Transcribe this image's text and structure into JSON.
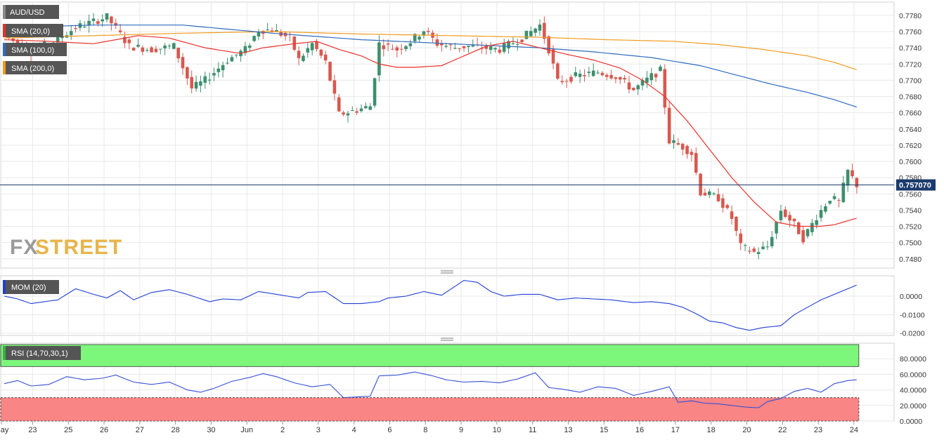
{
  "colors": {
    "bull": "#3d8f6e",
    "bear": "#d9584e",
    "sma20": "#e8302a",
    "sma100": "#2e6bbf",
    "sma200": "#f39a1e",
    "mom": "#1f3fd6",
    "rsi": "#3550d4",
    "price_line": "#1a3a6b",
    "rsi_overbought": "#7cf77c",
    "rsi_oversold": "#f98585",
    "grid": "#e9e9e9",
    "tag_bg": "#555555"
  },
  "watermark": {
    "part1": "FX",
    "part2": "STREET"
  },
  "chart_data": [
    {
      "id": "price",
      "type": "candlestick",
      "title": "AUD/USD",
      "ylim": [
        0.7472,
        0.7792
      ],
      "yticks": [
        "0.7480",
        "0.7500",
        "0.7520",
        "0.7540",
        "0.7560",
        "0.7580",
        "0.7600",
        "0.7620",
        "0.7640",
        "0.7660",
        "0.7680",
        "0.7700",
        "0.7720",
        "0.7740",
        "0.7760",
        "0.7780"
      ],
      "current_price_label": "0.757070",
      "current_price": 0.7571,
      "overlays": [
        {
          "name": "SMA (20,0)",
          "key": "sma20"
        },
        {
          "name": "SMA (100,0)",
          "key": "sma100"
        },
        {
          "name": "SMA (200,0)",
          "key": "sma200"
        }
      ],
      "x_labels": [
        {
          "i": 0,
          "label": "May"
        },
        {
          "i": 7,
          "label": "23"
        },
        {
          "i": 15,
          "label": "25"
        },
        {
          "i": 23,
          "label": "26"
        },
        {
          "i": 31,
          "label": "27"
        },
        {
          "i": 39,
          "label": "28"
        },
        {
          "i": 47,
          "label": "30"
        },
        {
          "i": 55,
          "label": "Jun"
        },
        {
          "i": 63,
          "label": "2"
        },
        {
          "i": 71,
          "label": "3"
        },
        {
          "i": 79,
          "label": "4"
        },
        {
          "i": 87,
          "label": "6"
        },
        {
          "i": 95,
          "label": "8"
        },
        {
          "i": 103,
          "label": "9"
        },
        {
          "i": 111,
          "label": "10"
        },
        {
          "i": 119,
          "label": "11"
        },
        {
          "i": 127,
          "label": "13"
        },
        {
          "i": 135,
          "label": "15"
        },
        {
          "i": 143,
          "label": "16"
        },
        {
          "i": 151,
          "label": "17"
        },
        {
          "i": 159,
          "label": "18"
        },
        {
          "i": 167,
          "label": "20"
        },
        {
          "i": 175,
          "label": "22"
        },
        {
          "i": 183,
          "label": "23"
        },
        {
          "i": 191,
          "label": "24"
        }
      ],
      "anchors": {
        "close": [
          [
            0,
            0.7755
          ],
          [
            6,
            0.7735
          ],
          [
            11,
            0.7748
          ],
          [
            16,
            0.7765
          ],
          [
            23,
            0.7778
          ],
          [
            28,
            0.7742
          ],
          [
            33,
            0.7738
          ],
          [
            38,
            0.7742
          ],
          [
            42,
            0.769
          ],
          [
            45,
            0.77
          ],
          [
            50,
            0.7725
          ],
          [
            54,
            0.7738
          ],
          [
            57,
            0.7762
          ],
          [
            60,
            0.7762
          ],
          [
            64,
            0.7752
          ],
          [
            66,
            0.7725
          ],
          [
            69,
            0.7745
          ],
          [
            72,
            0.7722
          ],
          [
            75,
            0.7658
          ],
          [
            78,
            0.7662
          ],
          [
            82,
            0.7668
          ],
          [
            84,
            0.7745
          ],
          [
            88,
            0.7738
          ],
          [
            91,
            0.7748
          ],
          [
            94,
            0.7762
          ],
          [
            97,
            0.7745
          ],
          [
            101,
            0.774
          ],
          [
            104,
            0.7742
          ],
          [
            107,
            0.774
          ],
          [
            111,
            0.7738
          ],
          [
            116,
            0.7752
          ],
          [
            120,
            0.7768
          ],
          [
            122,
            0.7738
          ],
          [
            124,
            0.7698
          ],
          [
            128,
            0.7705
          ],
          [
            133,
            0.771
          ],
          [
            137,
            0.7705
          ],
          [
            141,
            0.7688
          ],
          [
            145,
            0.7705
          ],
          [
            147,
            0.7712
          ],
          [
            149,
            0.7625
          ],
          [
            152,
            0.7618
          ],
          [
            154,
            0.761
          ],
          [
            156,
            0.7562
          ],
          [
            160,
            0.7555
          ],
          [
            163,
            0.753
          ],
          [
            165,
            0.7495
          ],
          [
            168,
            0.7488
          ],
          [
            171,
            0.7495
          ],
          [
            174,
            0.754
          ],
          [
            177,
            0.7522
          ],
          [
            179,
            0.7505
          ],
          [
            182,
            0.7532
          ],
          [
            185,
            0.7555
          ],
          [
            187,
            0.755
          ],
          [
            189,
            0.7588
          ],
          [
            191,
            0.7571
          ]
        ],
        "sma20": [
          [
            0,
            0.775
          ],
          [
            10,
            0.7748
          ],
          [
            20,
            0.7745
          ],
          [
            30,
            0.7755
          ],
          [
            37,
            0.7752
          ],
          [
            45,
            0.774
          ],
          [
            53,
            0.7733
          ],
          [
            58,
            0.774
          ],
          [
            65,
            0.7745
          ],
          [
            70,
            0.7748
          ],
          [
            75,
            0.7738
          ],
          [
            80,
            0.773
          ],
          [
            84,
            0.772
          ],
          [
            88,
            0.7716
          ],
          [
            92,
            0.7716
          ],
          [
            98,
            0.7718
          ],
          [
            103,
            0.773
          ],
          [
            108,
            0.7742
          ],
          [
            114,
            0.7748
          ],
          [
            120,
            0.774
          ],
          [
            126,
            0.7732
          ],
          [
            132,
            0.7725
          ],
          [
            138,
            0.7715
          ],
          [
            143,
            0.77
          ],
          [
            148,
            0.768
          ],
          [
            153,
            0.765
          ],
          [
            158,
            0.7615
          ],
          [
            163,
            0.758
          ],
          [
            168,
            0.755
          ],
          [
            173,
            0.7525
          ],
          [
            178,
            0.752
          ],
          [
            183,
            0.752
          ],
          [
            186,
            0.7522
          ],
          [
            191,
            0.753
          ]
        ],
        "sma100": [
          [
            0,
            0.7765
          ],
          [
            20,
            0.7768
          ],
          [
            40,
            0.7768
          ],
          [
            60,
            0.7758
          ],
          [
            80,
            0.775
          ],
          [
            100,
            0.7745
          ],
          [
            120,
            0.774
          ],
          [
            132,
            0.7735
          ],
          [
            145,
            0.7728
          ],
          [
            156,
            0.7718
          ],
          [
            165,
            0.7705
          ],
          [
            172,
            0.7695
          ],
          [
            180,
            0.7685
          ],
          [
            186,
            0.7676
          ],
          [
            191,
            0.7667
          ]
        ],
        "sma200": [
          [
            0,
            0.7752
          ],
          [
            20,
            0.7755
          ],
          [
            40,
            0.7758
          ],
          [
            60,
            0.776
          ],
          [
            80,
            0.7757
          ],
          [
            100,
            0.7755
          ],
          [
            120,
            0.7753
          ],
          [
            135,
            0.775
          ],
          [
            150,
            0.7748
          ],
          [
            160,
            0.7744
          ],
          [
            170,
            0.7738
          ],
          [
            180,
            0.773
          ],
          [
            186,
            0.7722
          ],
          [
            191,
            0.7713
          ]
        ]
      }
    },
    {
      "id": "mom",
      "type": "line",
      "title": "MOM (20)",
      "ylim": [
        -0.0205,
        0.0095
      ],
      "yticks": [
        "-0.0200",
        "-0.0100",
        "0.0000"
      ],
      "anchors": [
        [
          0,
          0.0
        ],
        [
          3,
          -0.0015
        ],
        [
          6,
          -0.004
        ],
        [
          9,
          -0.003
        ],
        [
          12,
          -0.002
        ],
        [
          16,
          0.004
        ],
        [
          20,
          0.001
        ],
        [
          23,
          -0.001
        ],
        [
          26,
          0.003
        ],
        [
          29,
          -0.002
        ],
        [
          33,
          0.002
        ],
        [
          37,
          0.0035
        ],
        [
          41,
          0.001
        ],
        [
          46,
          -0.003
        ],
        [
          49,
          -0.0015
        ],
        [
          53,
          -0.002
        ],
        [
          57,
          0.0025
        ],
        [
          61,
          0.001
        ],
        [
          66,
          -0.001
        ],
        [
          68,
          0.002
        ],
        [
          72,
          0.0025
        ],
        [
          76,
          -0.004
        ],
        [
          80,
          -0.004
        ],
        [
          84,
          -0.003
        ],
        [
          86,
          -0.001
        ],
        [
          90,
          0.0
        ],
        [
          94,
          0.0025
        ],
        [
          98,
          0.0005
        ],
        [
          103,
          0.0085
        ],
        [
          106,
          0.0075
        ],
        [
          109,
          0.0025
        ],
        [
          112,
          0.0
        ],
        [
          116,
          0.001
        ],
        [
          120,
          0.001
        ],
        [
          124,
          -0.002
        ],
        [
          128,
          -0.001
        ],
        [
          132,
          -0.0015
        ],
        [
          136,
          -0.002
        ],
        [
          141,
          -0.0035
        ],
        [
          145,
          -0.003
        ],
        [
          149,
          -0.004
        ],
        [
          152,
          -0.006
        ],
        [
          155,
          -0.0095
        ],
        [
          158,
          -0.0135
        ],
        [
          161,
          -0.0145
        ],
        [
          164,
          -0.017
        ],
        [
          167,
          -0.0185
        ],
        [
          170,
          -0.017
        ],
        [
          174,
          -0.016
        ],
        [
          177,
          -0.01
        ],
        [
          180,
          -0.006
        ],
        [
          183,
          -0.002
        ],
        [
          186,
          0.001
        ],
        [
          189,
          0.004
        ],
        [
          191,
          0.006
        ]
      ]
    },
    {
      "id": "rsi",
      "type": "line",
      "title": "RSI (14,70,30,1)",
      "ylim": [
        0,
        100
      ],
      "overbought": 70,
      "oversold": 30,
      "yticks": [
        "0.0000",
        "20.0000",
        "40.0000",
        "60.0000",
        "80.0000"
      ],
      "anchors": [
        [
          0,
          48
        ],
        [
          3,
          52
        ],
        [
          6,
          45
        ],
        [
          10,
          47
        ],
        [
          14,
          57
        ],
        [
          18,
          53
        ],
        [
          22,
          55
        ],
        [
          25,
          59
        ],
        [
          29,
          50
        ],
        [
          33,
          47
        ],
        [
          37,
          50
        ],
        [
          41,
          40
        ],
        [
          44,
          37
        ],
        [
          47,
          42
        ],
        [
          51,
          51
        ],
        [
          55,
          56
        ],
        [
          58,
          61
        ],
        [
          61,
          57
        ],
        [
          65,
          49
        ],
        [
          69,
          44
        ],
        [
          73,
          47
        ],
        [
          76,
          30
        ],
        [
          79,
          31
        ],
        [
          82,
          32
        ],
        [
          84,
          58
        ],
        [
          88,
          59
        ],
        [
          92,
          63
        ],
        [
          96,
          58
        ],
        [
          99,
          53
        ],
        [
          103,
          50
        ],
        [
          107,
          51
        ],
        [
          111,
          49
        ],
        [
          115,
          54
        ],
        [
          119,
          62
        ],
        [
          122,
          43
        ],
        [
          125,
          41
        ],
        [
          129,
          37
        ],
        [
          133,
          44
        ],
        [
          137,
          42
        ],
        [
          141,
          33
        ],
        [
          145,
          38
        ],
        [
          149,
          44
        ],
        [
          151,
          24
        ],
        [
          154,
          26
        ],
        [
          157,
          23
        ],
        [
          160,
          22
        ],
        [
          163,
          20
        ],
        [
          166,
          18
        ],
        [
          169,
          17
        ],
        [
          171,
          25
        ],
        [
          174,
          29
        ],
        [
          177,
          38
        ],
        [
          180,
          42
        ],
        [
          183,
          37
        ],
        [
          186,
          48
        ],
        [
          189,
          52
        ],
        [
          191,
          53
        ]
      ]
    }
  ]
}
